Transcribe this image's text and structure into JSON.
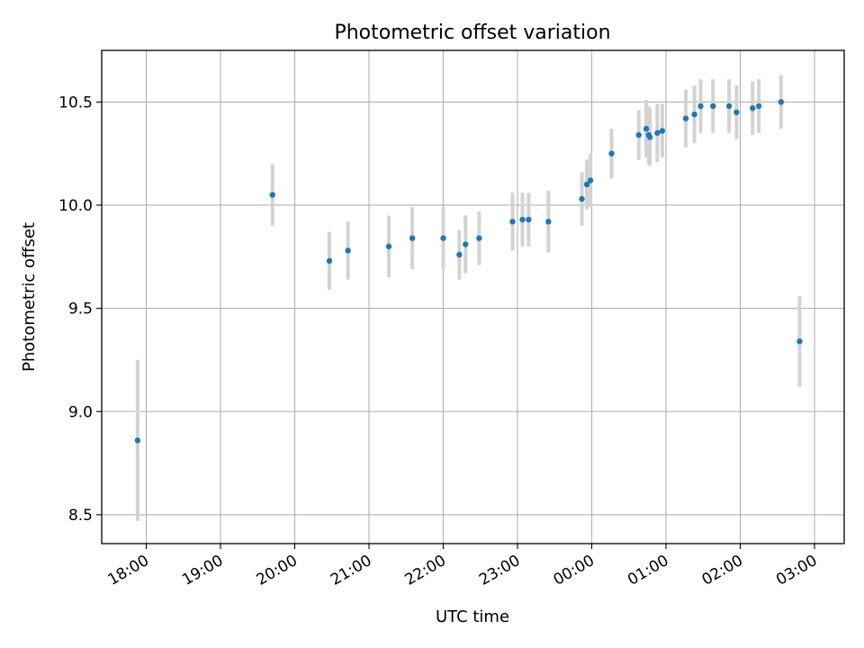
{
  "chart_data": {
    "type": "scatter",
    "title": "Photometric offset variation",
    "xlabel": "UTC time",
    "ylabel": "Photometric offset",
    "x_unit": "UTC time",
    "x_ticks": [
      "18:00",
      "19:00",
      "20:00",
      "21:00",
      "22:00",
      "23:00",
      "00:00",
      "01:00",
      "02:00",
      "03:00"
    ],
    "y_ticks": [
      "8.5",
      "9.0",
      "9.5",
      "10.0",
      "10.5"
    ],
    "xlim": [
      "17:24",
      "03:24"
    ],
    "ylim": [
      8.36,
      10.75
    ],
    "grid": true,
    "colors": {
      "point": "#1f77b4",
      "errorbar": "#d3d3d3",
      "grid": "#b0b0b0"
    },
    "series": [
      {
        "points": [
          {
            "x": "17:53",
            "y": 8.86,
            "err": 0.39
          },
          {
            "x": "19:42",
            "y": 10.05,
            "err": 0.15
          },
          {
            "x": "20:28",
            "y": 9.73,
            "err": 0.14
          },
          {
            "x": "20:43",
            "y": 9.78,
            "err": 0.14
          },
          {
            "x": "21:16",
            "y": 9.8,
            "err": 0.15
          },
          {
            "x": "21:35",
            "y": 9.84,
            "err": 0.15
          },
          {
            "x": "22:00",
            "y": 9.84,
            "err": 0.15
          },
          {
            "x": "22:13",
            "y": 9.76,
            "err": 0.12
          },
          {
            "x": "22:18",
            "y": 9.81,
            "err": 0.14
          },
          {
            "x": "22:29",
            "y": 9.84,
            "err": 0.13
          },
          {
            "x": "22:56",
            "y": 9.92,
            "err": 0.14
          },
          {
            "x": "23:04",
            "y": 9.93,
            "err": 0.13
          },
          {
            "x": "23:09",
            "y": 9.93,
            "err": 0.13
          },
          {
            "x": "23:25",
            "y": 9.92,
            "err": 0.15
          },
          {
            "x": "23:52",
            "y": 10.03,
            "err": 0.13
          },
          {
            "x": "23:56",
            "y": 10.1,
            "err": 0.12
          },
          {
            "x": "23:59",
            "y": 10.12,
            "err": 0.13
          },
          {
            "x": "00:16",
            "y": 10.25,
            "err": 0.12
          },
          {
            "x": "00:38",
            "y": 10.34,
            "err": 0.12
          },
          {
            "x": "00:44",
            "y": 10.37,
            "err": 0.14
          },
          {
            "x": "00:46",
            "y": 10.34,
            "err": 0.14
          },
          {
            "x": "00:47",
            "y": 10.33,
            "err": 0.14
          },
          {
            "x": "00:53",
            "y": 10.35,
            "err": 0.14
          },
          {
            "x": "00:57",
            "y": 10.36,
            "err": 0.13
          },
          {
            "x": "01:16",
            "y": 10.42,
            "err": 0.14
          },
          {
            "x": "01:23",
            "y": 10.44,
            "err": 0.14
          },
          {
            "x": "01:28",
            "y": 10.48,
            "err": 0.13
          },
          {
            "x": "01:38",
            "y": 10.48,
            "err": 0.13
          },
          {
            "x": "01:51",
            "y": 10.48,
            "err": 0.13
          },
          {
            "x": "01:57",
            "y": 10.45,
            "err": 0.13
          },
          {
            "x": "02:10",
            "y": 10.47,
            "err": 0.13
          },
          {
            "x": "02:15",
            "y": 10.48,
            "err": 0.13
          },
          {
            "x": "02:33",
            "y": 10.5,
            "err": 0.13
          },
          {
            "x": "02:48",
            "y": 9.34,
            "err": 0.22
          }
        ]
      }
    ]
  }
}
